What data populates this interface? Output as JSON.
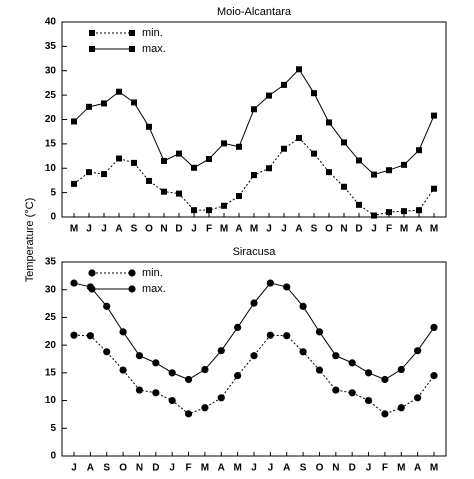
{
  "chart_data": [
    {
      "type": "line",
      "title": "Moio-Alcantara",
      "ylabel": "Temperature (°C)",
      "categories": [
        "M",
        "J",
        "J",
        "A",
        "S",
        "O",
        "N",
        "D",
        "J",
        "F",
        "M",
        "A",
        "M",
        "J",
        "J",
        "A",
        "S",
        "O",
        "N",
        "D",
        "J",
        "F",
        "M",
        "A",
        "M"
      ],
      "ylim": [
        0,
        40
      ],
      "yticks": [
        0,
        5,
        10,
        15,
        20,
        25,
        30,
        35,
        40
      ],
      "marker": "square",
      "series": [
        {
          "name": "min.",
          "color": "#000000",
          "dash": "dotted",
          "values": [
            6.8,
            9.2,
            8.8,
            12.0,
            11.1,
            7.4,
            5.2,
            4.8,
            1.4,
            1.4,
            2.3,
            4.3,
            8.6,
            10.0,
            14.0,
            16.2,
            13.0,
            9.2,
            6.2,
            2.5,
            0.3,
            1.0,
            1.2,
            1.4,
            5.8
          ]
        },
        {
          "name": "max.",
          "color": "#000000",
          "dash": "solid",
          "values": [
            19.6,
            22.6,
            23.3,
            25.7,
            23.5,
            18.5,
            11.5,
            13.0,
            10.1,
            11.9,
            15.1,
            14.4,
            22.1,
            24.9,
            27.1,
            30.3,
            25.4,
            19.4,
            15.3,
            11.6,
            8.7,
            9.6,
            10.7,
            13.7,
            20.8
          ]
        }
      ]
    },
    {
      "type": "line",
      "title": "Siracusa",
      "categories": [
        "J",
        "A",
        "S",
        "O",
        "N",
        "D",
        "J",
        "F",
        "M",
        "A",
        "M",
        "J",
        "J",
        "A",
        "S",
        "O",
        "N",
        "D",
        "J",
        "F",
        "M",
        "A",
        "M"
      ],
      "ylim": [
        0,
        35
      ],
      "yticks": [
        0,
        5,
        10,
        15,
        20,
        25,
        30,
        35
      ],
      "marker": "circle",
      "series": [
        {
          "name": "min.",
          "color": "#000000",
          "dash": "dotted",
          "values": [
            21.8,
            21.7,
            18.8,
            15.5,
            11.9,
            11.4,
            10.0,
            7.6,
            8.7,
            10.5,
            14.5,
            18.1,
            21.8,
            21.7,
            18.8,
            15.5,
            11.9,
            11.4,
            10.0,
            7.6,
            8.7,
            10.5,
            14.5
          ]
        },
        {
          "name": "max.",
          "color": "#000000",
          "dash": "solid",
          "values": [
            31.2,
            30.5,
            27.0,
            22.4,
            18.1,
            16.8,
            15.0,
            13.8,
            15.6,
            19.0,
            23.2,
            27.6,
            31.2,
            30.5,
            27.0,
            22.4,
            18.1,
            16.8,
            15.0,
            13.8,
            15.6,
            19.0,
            23.2
          ]
        }
      ]
    }
  ]
}
